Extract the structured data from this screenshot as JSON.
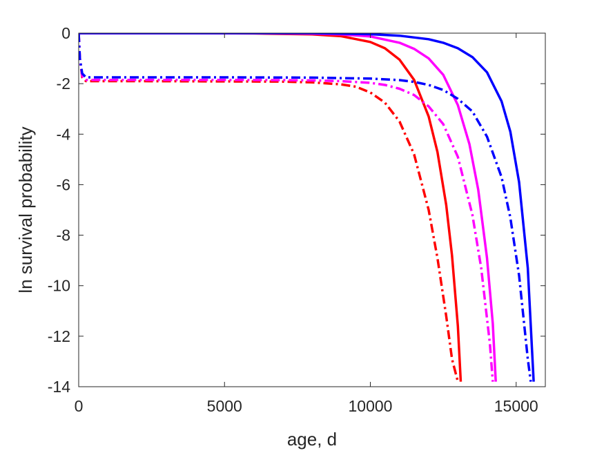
{
  "chart_data": {
    "type": "line",
    "title": "",
    "xlabel": "age, d",
    "ylabel": "ln survival probability",
    "xlim": [
      0,
      16000
    ],
    "ylim": [
      -14,
      0
    ],
    "xticks": [
      0,
      5000,
      10000,
      15000
    ],
    "xtick_labels": [
      "0",
      "5000",
      "10000",
      "15000"
    ],
    "yticks": [
      0,
      -2,
      -4,
      -6,
      -8,
      -10,
      -12,
      -14
    ],
    "ytick_labels": [
      "0",
      "-2",
      "-4",
      "-6",
      "-8",
      "-10",
      "-12",
      "-14"
    ],
    "grid": false,
    "legend": "none",
    "series": [
      {
        "color": "#ff0000",
        "style": "solid",
        "x": [
          0,
          2000,
          4000,
          6000,
          8000,
          9000,
          10000,
          10500,
          11000,
          11500,
          12000,
          12300,
          12600,
          12800,
          13000,
          13100
        ],
        "y": [
          0,
          0,
          0,
          -0.01,
          -0.05,
          -0.12,
          -0.35,
          -0.6,
          -1.05,
          -1.85,
          -3.3,
          -4.7,
          -6.8,
          -8.8,
          -11.6,
          -13.8
        ]
      },
      {
        "color": "#ff00ff",
        "style": "solid",
        "x": [
          0,
          2000,
          4000,
          6000,
          8000,
          9000,
          10000,
          11000,
          11500,
          12000,
          12500,
          13000,
          13400,
          13700,
          14000,
          14200,
          14300
        ],
        "y": [
          0,
          0,
          0,
          0,
          -0.02,
          -0.05,
          -0.13,
          -0.38,
          -0.62,
          -1.0,
          -1.65,
          -2.85,
          -4.4,
          -6.2,
          -8.9,
          -11.5,
          -13.8
        ]
      },
      {
        "color": "#0000ff",
        "style": "solid",
        "x": [
          0,
          2000,
          4000,
          6000,
          8000,
          10000,
          11000,
          12000,
          12500,
          13000,
          13500,
          14000,
          14500,
          14800,
          15100,
          15400,
          15600
        ],
        "y": [
          0,
          0,
          0,
          0,
          0,
          -0.04,
          -0.1,
          -0.24,
          -0.38,
          -0.6,
          -0.95,
          -1.55,
          -2.7,
          -3.9,
          -5.9,
          -9.3,
          -13.8
        ]
      },
      {
        "color": "#ff0000",
        "style": "dashdot",
        "x": [
          0,
          40,
          120,
          250,
          2000,
          5000,
          7000,
          8000,
          9000,
          9500,
          10000,
          10500,
          11000,
          11500,
          12000,
          12300,
          12600,
          12800,
          13000
        ],
        "y": [
          0,
          -1.0,
          -1.75,
          -1.9,
          -1.9,
          -1.91,
          -1.92,
          -1.95,
          -2.03,
          -2.12,
          -2.35,
          -2.75,
          -3.5,
          -4.8,
          -7.0,
          -8.9,
          -11.2,
          -12.9,
          -13.8
        ]
      },
      {
        "color": "#ff00ff",
        "style": "dashdot",
        "x": [
          0,
          40,
          120,
          250,
          2000,
          5000,
          7000,
          8000,
          9000,
          10000,
          10500,
          11000,
          11500,
          12000,
          12500,
          13000,
          13500,
          13800,
          14100,
          14200
        ],
        "y": [
          0,
          -1.0,
          -1.7,
          -1.85,
          -1.85,
          -1.85,
          -1.86,
          -1.87,
          -1.9,
          -1.97,
          -2.05,
          -2.2,
          -2.45,
          -2.9,
          -3.6,
          -4.9,
          -7.2,
          -9.3,
          -12.3,
          -13.8
        ]
      },
      {
        "color": "#0000ff",
        "style": "dashdot",
        "x": [
          0,
          40,
          120,
          250,
          2000,
          5000,
          8000,
          10000,
          11000,
          11500,
          12000,
          12500,
          13000,
          13500,
          14000,
          14500,
          14800,
          15100,
          15400,
          15500
        ],
        "y": [
          0,
          -1.0,
          -1.6,
          -1.75,
          -1.75,
          -1.75,
          -1.76,
          -1.8,
          -1.86,
          -1.93,
          -2.05,
          -2.25,
          -2.6,
          -3.1,
          -4.1,
          -5.7,
          -7.3,
          -9.6,
          -12.9,
          -13.8
        ]
      }
    ]
  }
}
